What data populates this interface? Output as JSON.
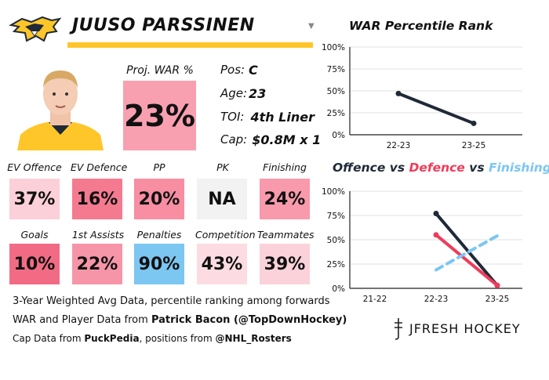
{
  "player": {
    "name": "JUUSO PARSSINEN",
    "proj_war_label": "Proj. WAR %",
    "proj_war_value": "23%",
    "proj_war_color": "#f9a0b0",
    "info": [
      {
        "label": "Pos:",
        "value": "C"
      },
      {
        "label": "Age:",
        "value": "23"
      },
      {
        "label": "TOI:",
        "value": "4th Liner"
      },
      {
        "label": "Cap:",
        "value": "$0.8M x 1"
      }
    ]
  },
  "colors": {
    "underline": "#ffc629",
    "navy": "#1f2937",
    "red": "#ef3b5a",
    "blue": "#7cc6f2"
  },
  "stats_row1": [
    {
      "label": "EV Offence",
      "value": "37%",
      "color": "#fbd0d8"
    },
    {
      "label": "EV Defence",
      "value": "16%",
      "color": "#f47a90"
    },
    {
      "label": "PP",
      "value": "20%",
      "color": "#f78ea2"
    },
    {
      "label": "PK",
      "value": "NA",
      "color": "#f2f2f2"
    },
    {
      "label": "Finishing",
      "value": "24%",
      "color": "#f89aac"
    }
  ],
  "stats_row2": [
    {
      "label": "Goals",
      "value": "10%",
      "color": "#f26b84"
    },
    {
      "label": "1st Assists",
      "value": "22%",
      "color": "#f795a8"
    },
    {
      "label": "Penalties",
      "value": "90%",
      "color": "#7cc6f2"
    },
    {
      "label": "Competition",
      "value": "43%",
      "color": "#fcdce2"
    },
    {
      "label": "Teammates",
      "value": "39%",
      "color": "#fbd2da"
    }
  ],
  "footer": {
    "line1": "3-Year Weighted Avg Data, percentile ranking among forwards",
    "line2_prefix": "WAR and Player Data from ",
    "line2_bold": "Patrick Bacon (@TopDownHockey)",
    "line3_prefix": "Cap Data from ",
    "line3_bold1": "PuckPedia",
    "line3_mid": ", positions from ",
    "line3_bold2": "@NHL_Rosters"
  },
  "brand": {
    "name": "JFRESH HOCKEY"
  },
  "chart_data": [
    {
      "type": "line",
      "title": "WAR Percentile Rank",
      "categories": [
        "22-23",
        "23-25"
      ],
      "ylim": [
        0,
        100
      ],
      "yticks": [
        "0%",
        "25%",
        "50%",
        "75%",
        "100%"
      ],
      "series": [
        {
          "values": [
            47,
            13
          ],
          "color": "#1f2937",
          "style": "solid"
        }
      ]
    },
    {
      "type": "line",
      "title_parts": [
        {
          "text": "Offence",
          "color": "#1f2937"
        },
        {
          "text": " vs ",
          "color": "#1f2937"
        },
        {
          "text": "Defence",
          "color": "#ef3b5a"
        },
        {
          "text": " vs ",
          "color": "#1f2937"
        },
        {
          "text": "Finishing",
          "color": "#7cc6f2"
        }
      ],
      "categories": [
        "21-22",
        "22-23",
        "23-25"
      ],
      "ylim": [
        0,
        100
      ],
      "yticks": [
        "0%",
        "25%",
        "50%",
        "75%",
        "100%"
      ],
      "series": [
        {
          "name": "Offence",
          "values": [
            null,
            77,
            3
          ],
          "color": "#1f2937",
          "style": "solid"
        },
        {
          "name": "Defence",
          "values": [
            null,
            55,
            3
          ],
          "color": "#ef3b5a",
          "style": "solid"
        },
        {
          "name": "Finishing",
          "values": [
            null,
            19,
            54
          ],
          "color": "#7cc6f2",
          "style": "dashed"
        }
      ]
    }
  ]
}
